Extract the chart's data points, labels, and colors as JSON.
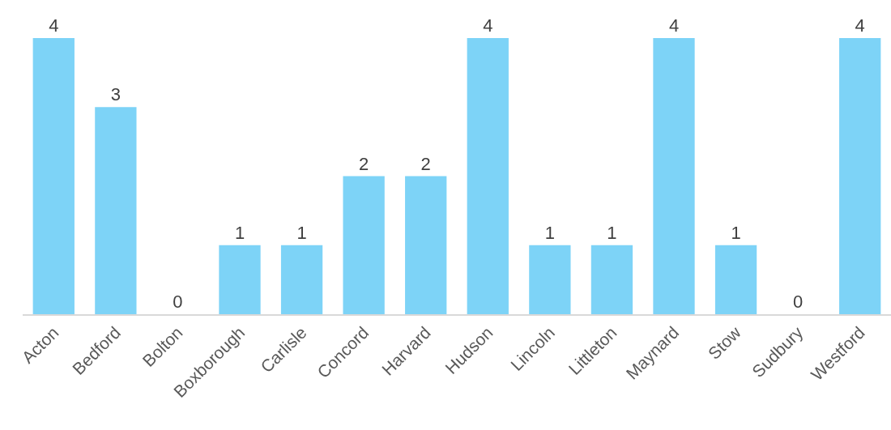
{
  "chart_data": {
    "type": "bar",
    "categories": [
      "Acton",
      "Bedford",
      "Bolton",
      "Boxborough",
      "Carlisle",
      "Concord",
      "Harvard",
      "Hudson",
      "Lincoln",
      "Littleton",
      "Maynard",
      "Stow",
      "Sudbury",
      "Westford"
    ],
    "values": [
      4,
      3,
      0,
      1,
      1,
      2,
      2,
      4,
      1,
      1,
      4,
      1,
      0,
      4
    ],
    "color": "#7dd3f7",
    "data_labels": true,
    "grid": false,
    "legend": false
  }
}
